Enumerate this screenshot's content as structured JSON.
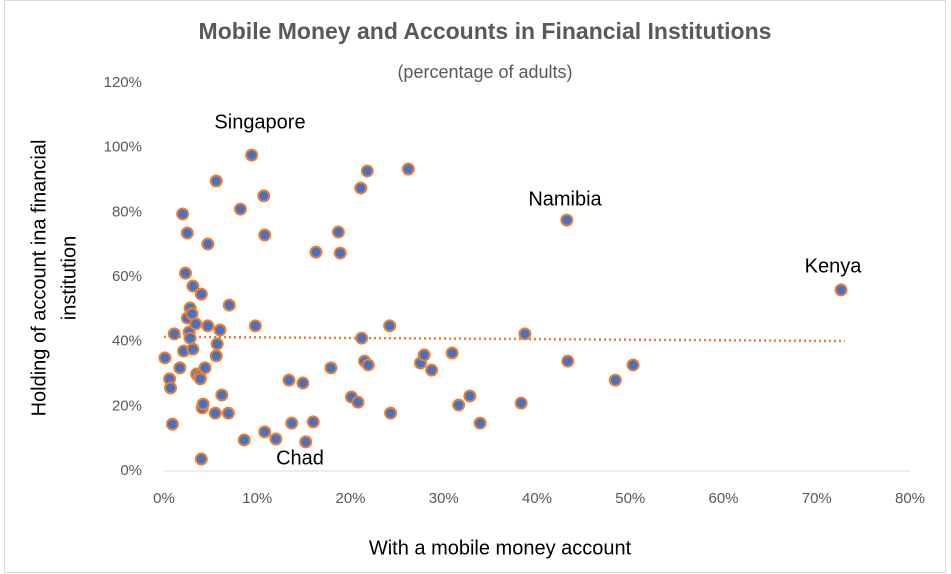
{
  "chart_data": {
    "type": "scatter",
    "title": "Mobile Money and Accounts in Financial Institutions",
    "subtitle": "(percentage of adults)",
    "x_label": "With a mobile money account",
    "y_label": [
      "Holding of account ina financial",
      "institution"
    ],
    "xlim": [
      0,
      80
    ],
    "ylim": [
      0,
      120
    ],
    "xticks": [
      {
        "value": 0,
        "label": "0%"
      },
      {
        "value": 10,
        "label": "10%"
      },
      {
        "value": 20,
        "label": "20%"
      },
      {
        "value": 30,
        "label": "30%"
      },
      {
        "value": 40,
        "label": "40%"
      },
      {
        "value": 50,
        "label": "50%"
      },
      {
        "value": 60,
        "label": "60%"
      },
      {
        "value": 70,
        "label": "70%"
      },
      {
        "value": 80,
        "label": "80%"
      }
    ],
    "yticks": [
      {
        "value": 0,
        "label": "0%"
      },
      {
        "value": 20,
        "label": "20%"
      },
      {
        "value": 40,
        "label": "40%"
      },
      {
        "value": 60,
        "label": "60%"
      },
      {
        "value": 80,
        "label": "80%"
      },
      {
        "value": 100,
        "label": "100%"
      },
      {
        "value": 120,
        "label": "120%"
      }
    ],
    "grid": false,
    "series": [
      {
        "color": "#4472c4",
        "edge_color": "#ed7d31",
        "x": [
          0.1,
          0.6,
          0.7,
          0.9,
          1.1,
          1.7,
          2.0,
          2.1,
          2.3,
          2.5,
          2.5,
          2.7,
          2.8,
          2.8,
          3.0,
          3.1,
          3.1,
          3.4,
          3.5,
          3.8,
          3.9,
          4.0,
          4.1,
          4.2,
          4.0,
          4.4,
          4.7,
          4.7,
          5.5,
          5.6,
          5.6,
          5.7,
          6.0,
          6.2,
          6.9,
          7.0,
          8.2,
          8.6,
          9.4,
          9.8,
          10.7,
          10.8,
          10.8,
          12.0,
          13.4,
          13.7,
          14.9,
          15.2,
          16.0,
          16.3,
          17.9,
          18.7,
          18.9,
          20.1,
          20.8,
          21.1,
          21.2,
          21.5,
          21.9,
          21.8,
          24.2,
          24.3,
          26.2,
          27.5,
          27.9,
          28.7,
          30.9,
          31.6,
          32.8,
          33.9,
          38.3,
          38.7,
          43.2,
          43.3,
          48.4,
          50.3,
          72.6
        ],
        "values": [
          35,
          28.5,
          25.7,
          14.5,
          42.4,
          31.9,
          79.5,
          37.1,
          61.2,
          73.6,
          47.3,
          43,
          41.1,
          50.4,
          48.6,
          37.7,
          57.2,
          45.5,
          30,
          29.4,
          28.5,
          54.7,
          19.5,
          20.7,
          3.7,
          31.9,
          70.2,
          44.9,
          17.9,
          35.6,
          89.7,
          39.3,
          43.6,
          23.5,
          17.9,
          51.3,
          81,
          9.6,
          97.7,
          44.9,
          85.1,
          12.1,
          73,
          9.9,
          28.1,
          14.8,
          27.2,
          9,
          15.2,
          67.7,
          31.9,
          73.9,
          67.4,
          22.9,
          21.3,
          87.5,
          41.1,
          34,
          32.8,
          92.8,
          44.9,
          17.9,
          93.4,
          33.4,
          35.9,
          31.2,
          36.5,
          20.4,
          23.2,
          14.8,
          21,
          42.4,
          77.6,
          34,
          28.1,
          32.8,
          56
        ]
      }
    ],
    "trendline": {
      "color": "#ed7d31",
      "x": [
        0,
        73
      ],
      "values": [
        41.5,
        40.2
      ]
    },
    "annotations": [
      "Singapore",
      "Namibia",
      "Kenya",
      "Chad"
    ]
  }
}
